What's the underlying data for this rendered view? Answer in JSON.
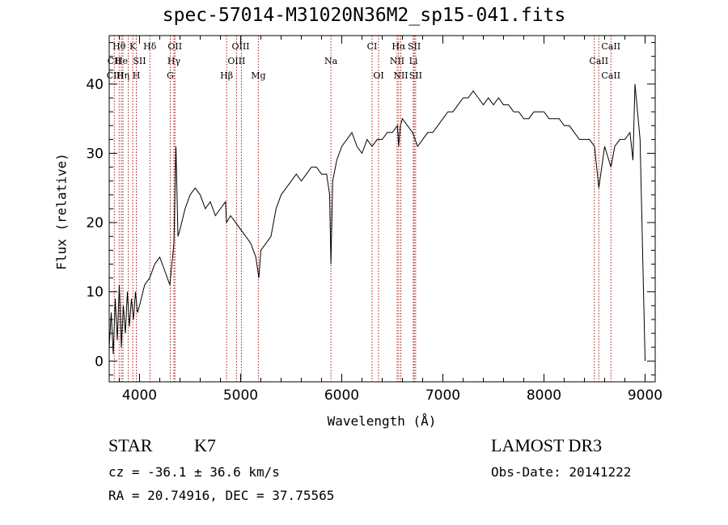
{
  "header": {
    "title": "spec-57014-M31020N36M2_sp15-041.fits"
  },
  "info": {
    "class_label": "STAR",
    "subclass": "K7",
    "survey": "LAMOST DR3",
    "cz_text": "cz = -36.1 ± 36.6 km/s",
    "obs_date_text": "Obs-Date: 20141222",
    "coords_text": "RA =  20.74916, DEC =  37.75565"
  },
  "chart_data": {
    "type": "line",
    "title": "spec-57014-M31020N36M2_sp15-041.fits",
    "xlabel": "Wavelength (Å)",
    "ylabel": "Flux (relative)",
    "xlim": [
      3700,
      9100
    ],
    "ylim": [
      -3,
      47
    ],
    "x_ticks": [
      4000,
      5000,
      6000,
      7000,
      8000,
      9000
    ],
    "y_ticks": [
      0,
      10,
      20,
      30,
      40
    ],
    "grid": false,
    "series": [
      {
        "name": "spectrum",
        "x": [
          3700,
          3720,
          3740,
          3760,
          3780,
          3800,
          3820,
          3840,
          3860,
          3880,
          3900,
          3920,
          3940,
          3960,
          3980,
          4000,
          4050,
          4100,
          4150,
          4200,
          4250,
          4300,
          4320,
          4340,
          4360,
          4380,
          4400,
          4450,
          4500,
          4550,
          4600,
          4650,
          4700,
          4750,
          4800,
          4850,
          4860,
          4900,
          4950,
          5000,
          5050,
          5100,
          5150,
          5180,
          5200,
          5250,
          5300,
          5350,
          5400,
          5450,
          5500,
          5550,
          5600,
          5650,
          5700,
          5750,
          5800,
          5850,
          5880,
          5893,
          5910,
          5950,
          6000,
          6050,
          6100,
          6150,
          6200,
          6250,
          6300,
          6350,
          6400,
          6450,
          6500,
          6550,
          6563,
          6580,
          6600,
          6650,
          6700,
          6750,
          6800,
          6850,
          6900,
          6950,
          7000,
          7050,
          7100,
          7150,
          7200,
          7250,
          7300,
          7350,
          7400,
          7450,
          7500,
          7550,
          7600,
          7650,
          7700,
          7750,
          7800,
          7850,
          7900,
          7950,
          8000,
          8050,
          8100,
          8150,
          8200,
          8250,
          8300,
          8350,
          8400,
          8450,
          8500,
          8542,
          8600,
          8662,
          8700,
          8750,
          8800,
          8850,
          8880,
          8900,
          8950,
          9000
        ],
        "y": [
          2,
          7,
          1,
          9,
          3,
          11,
          2,
          8,
          4,
          10,
          5,
          9,
          6,
          10,
          7,
          8,
          11,
          12,
          14,
          15,
          13,
          11,
          14,
          17,
          31,
          18,
          19,
          22,
          24,
          25,
          24,
          22,
          23,
          21,
          22,
          23,
          20,
          21,
          20,
          19,
          18,
          17,
          15,
          12,
          16,
          17,
          18,
          22,
          24,
          25,
          26,
          27,
          26,
          27,
          28,
          28,
          27,
          27,
          24,
          14,
          26,
          29,
          31,
          32,
          33,
          31,
          30,
          32,
          31,
          32,
          32,
          33,
          33,
          34,
          31,
          34,
          35,
          34,
          33,
          31,
          32,
          33,
          33,
          34,
          35,
          36,
          36,
          37,
          38,
          38,
          39,
          38,
          37,
          38,
          37,
          38,
          37,
          37,
          36,
          36,
          35,
          35,
          36,
          36,
          36,
          35,
          35,
          35,
          34,
          34,
          33,
          32,
          32,
          32,
          31,
          25,
          31,
          28,
          31,
          32,
          32,
          33,
          29,
          40,
          32,
          0
        ]
      }
    ],
    "line_labels": [
      {
        "text": "Hθ",
        "x": 3798,
        "row": 0
      },
      {
        "text": "CII",
        "x": 3750,
        "row": 1
      },
      {
        "text": "CIII",
        "x": 3760,
        "row": 2
      },
      {
        "text": "Hη",
        "x": 3836,
        "row": 2
      },
      {
        "text": "He",
        "x": 3820,
        "row": 1
      },
      {
        "text": "K",
        "x": 3933,
        "row": 0
      },
      {
        "text": "H",
        "x": 3968,
        "row": 2
      },
      {
        "text": "SII",
        "x": 4000,
        "row": 1
      },
      {
        "text": "Hδ",
        "x": 4102,
        "row": 0
      },
      {
        "text": "OII",
        "x": 4350,
        "row": 0
      },
      {
        "text": "Hγ",
        "x": 4340,
        "row": 1
      },
      {
        "text": "G",
        "x": 4304,
        "row": 2
      },
      {
        "text": "OIII",
        "x": 5000,
        "row": 0
      },
      {
        "text": "OIII",
        "x": 4959,
        "row": 1
      },
      {
        "text": "Hβ",
        "x": 4861,
        "row": 2
      },
      {
        "text": "Mg",
        "x": 5175,
        "row": 2
      },
      {
        "text": "Na",
        "x": 5893,
        "row": 1
      },
      {
        "text": "CI",
        "x": 6300,
        "row": 0
      },
      {
        "text": "OI",
        "x": 6364,
        "row": 2
      },
      {
        "text": "Hα",
        "x": 6563,
        "row": 0
      },
      {
        "text": "SII",
        "x": 6717,
        "row": 0
      },
      {
        "text": "NII",
        "x": 6548,
        "row": 1
      },
      {
        "text": "Li",
        "x": 6708,
        "row": 1
      },
      {
        "text": "NII",
        "x": 6584,
        "row": 2
      },
      {
        "text": "SII",
        "x": 6731,
        "row": 2
      },
      {
        "text": "CaII",
        "x": 8662,
        "row": 0
      },
      {
        "text": "CaII",
        "x": 8542,
        "row": 1
      },
      {
        "text": "CaII",
        "x": 8662,
        "row": 2
      }
    ],
    "line_markers": [
      3750,
      3798,
      3820,
      3836,
      3889,
      3933,
      3968,
      4102,
      4304,
      4340,
      4350,
      4861,
      4959,
      5007,
      5175,
      5893,
      6300,
      6364,
      6548,
      6563,
      6584,
      6708,
      6717,
      6731,
      8498,
      8542,
      8662
    ]
  }
}
